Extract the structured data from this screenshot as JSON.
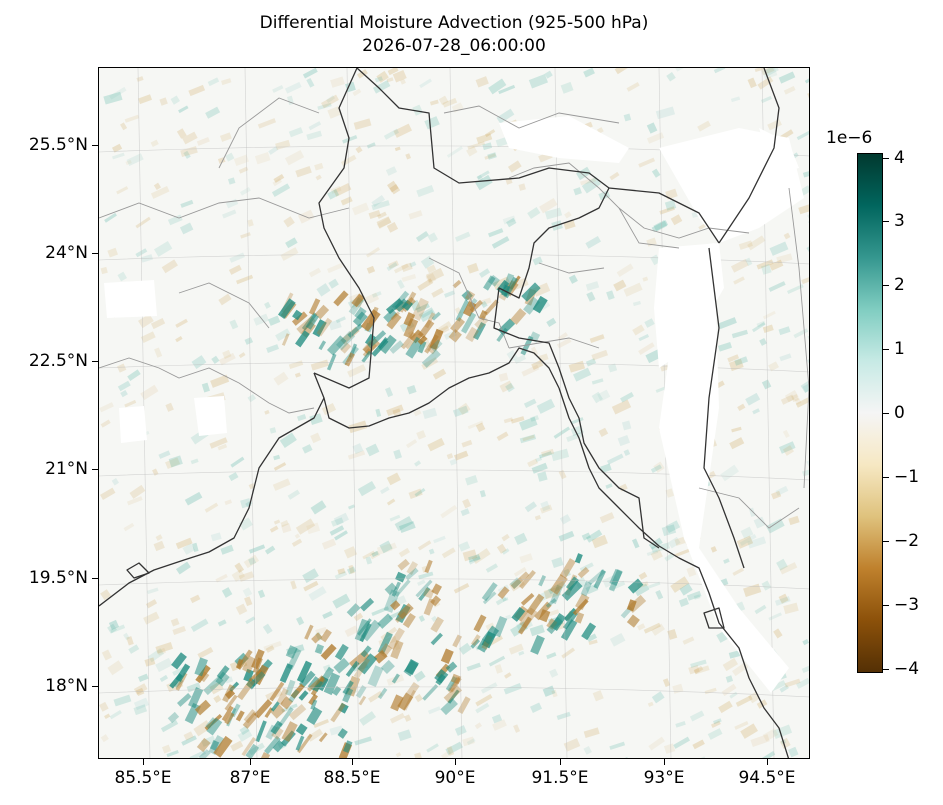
{
  "title": "Differential Moisture Advection (925-500 hPa)",
  "subtitle": "2026-07-28_06:00:00",
  "map": {
    "projection": "lambert-conformal",
    "extent": {
      "lon_min": 84.5,
      "lon_max": 95.3,
      "lat_min": 16.8,
      "lat_max": 26.7
    },
    "lat_ticks": [
      "25.5°N",
      "24°N",
      "22.5°N",
      "21°N",
      "19.5°N",
      "18°N"
    ],
    "lon_ticks": [
      "85.5°E",
      "87°E",
      "88.5°E",
      "90°E",
      "91.5°E",
      "93°E",
      "94.5°E"
    ],
    "gridlines": true,
    "features": [
      "coastline",
      "country-borders",
      "state-borders"
    ],
    "field_colormap": "BrBG",
    "masked_regions_color": "#ffffff",
    "colors": {
      "coastline": "#333333",
      "borders": "#999999",
      "ocean_bg": "#f6f7f4",
      "neg": "#c89a46",
      "pos": "#3aa898"
    }
  },
  "colorbar": {
    "exponent_label": "1e−6",
    "ticks": [
      "4",
      "3",
      "2",
      "1",
      "0",
      "−1",
      "−2",
      "−3",
      "−4"
    ],
    "range": [
      -4.1,
      4.1
    ],
    "colors": [
      "#01392f",
      "#01665e",
      "#35978f",
      "#80cdc1",
      "#c7eae5",
      "#f5f5f5",
      "#f6e8c3",
      "#dfc27d",
      "#bf812d",
      "#8c510a",
      "#543005"
    ]
  }
}
